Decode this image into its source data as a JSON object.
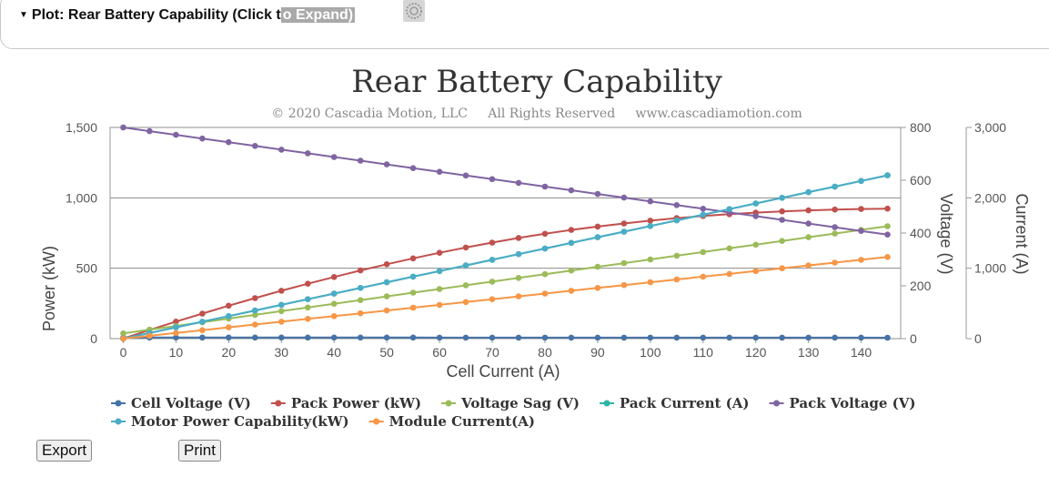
{
  "header": {
    "toggle_prefix": "Plot: Rear Battery Capability (Click t",
    "toggle_highlight": "o Expand)",
    "icon": "gear-icon"
  },
  "buttons": {
    "export_label": "Export",
    "print_label": "Print"
  },
  "colors": {
    "cell_voltage": "#4572a7",
    "pack_power": "#c0504d",
    "voltage_sag": "#9bbb59",
    "pack_current": "#2ab5a5",
    "pack_voltage": "#8064a2",
    "motor_power": "#4bacc6",
    "module_current": "#f79646"
  },
  "chart_data": {
    "type": "line",
    "title": "Rear Battery Capability",
    "subtitle": "© 2020 Cascadia Motion, LLC     All Rights Reserved     www.cascadiamotion.com",
    "xlabel": "Cell Current (A)",
    "x": [
      0,
      5,
      10,
      15,
      20,
      25,
      30,
      35,
      40,
      45,
      50,
      55,
      60,
      65,
      70,
      75,
      80,
      85,
      90,
      95,
      100,
      105,
      110,
      115,
      120,
      125,
      130,
      135,
      140,
      145
    ],
    "xlim": [
      -2.5,
      147.5
    ],
    "xticks": [
      0,
      10,
      20,
      30,
      40,
      50,
      60,
      70,
      80,
      90,
      100,
      110,
      120,
      130,
      140
    ],
    "axes": {
      "power": {
        "label": "Power (kW)",
        "range": [
          0,
          1500
        ],
        "ticks": [
          0,
          500,
          1000,
          1500
        ],
        "tick_labels": [
          "0",
          "500",
          "1,000",
          "1,500"
        ]
      },
      "voltage": {
        "label": "Voltage (V)",
        "range": [
          0,
          800
        ],
        "ticks": [
          0,
          200,
          400,
          600,
          800
        ],
        "tick_labels": [
          "0",
          "200",
          "400",
          "600",
          "800"
        ]
      },
      "current": {
        "label": "Current (A)",
        "range": [
          0,
          3000
        ],
        "ticks": [
          0,
          1000,
          2000,
          3000
        ],
        "tick_labels": [
          "0",
          "1,000",
          "2,000",
          "3,000"
        ]
      }
    },
    "series": [
      {
        "name": "Cell Voltage (V)",
        "axis": "voltage",
        "color": "#4572a7",
        "values": [
          4.2,
          4.18,
          4.16,
          4.14,
          4.12,
          4.1,
          4.08,
          4.06,
          4.04,
          4.02,
          4.0,
          3.98,
          3.96,
          3.94,
          3.92,
          3.9,
          3.88,
          3.86,
          3.84,
          3.82,
          3.8,
          3.78,
          3.76,
          3.74,
          3.72,
          3.7,
          3.68,
          3.66,
          3.64,
          3.62
        ]
      },
      {
        "name": "Pack Power (kW)",
        "axis": "power",
        "color": "#c0504d",
        "values": [
          0,
          62,
          121,
          178,
          234,
          288,
          340,
          390,
          438,
          484,
          528,
          570,
          610,
          647,
          682,
          715,
          745,
          772,
          796,
          818,
          838,
          856,
          871,
          884,
          895,
          904,
          911,
          917,
          921,
          923
        ]
      },
      {
        "name": "Voltage Sag (V)",
        "axis": "voltage",
        "color": "#9bbb59",
        "values": [
          20,
          34,
          48,
          62,
          76,
          90,
          104,
          118,
          132,
          146,
          160,
          174,
          188,
          202,
          216,
          230,
          244,
          258,
          272,
          286,
          300,
          314,
          328,
          342,
          356,
          370,
          384,
          398,
          412,
          426
        ]
      },
      {
        "name": "Pack Current (A)",
        "axis": "current",
        "color": "#2ab5a5",
        "values": [
          0,
          80,
          160,
          240,
          320,
          400,
          480,
          560,
          640,
          720,
          800,
          880,
          960,
          1040,
          1120,
          1200,
          1280,
          1360,
          1440,
          1520,
          1600,
          1680,
          1760,
          1840,
          1920,
          2000,
          2080,
          2160,
          2240,
          2320
        ]
      },
      {
        "name": "Pack Voltage (V)",
        "axis": "voltage",
        "color": "#8064a2",
        "values": [
          800,
          786,
          772,
          758,
          744,
          730,
          716,
          702,
          688,
          674,
          660,
          646,
          632,
          618,
          604,
          590,
          576,
          562,
          548,
          534,
          520,
          506,
          492,
          478,
          464,
          450,
          436,
          422,
          408,
          394
        ]
      },
      {
        "name": "Motor Power Capability(kW)",
        "axis": "power",
        "color": "#4bacc6",
        "values": [
          0,
          40,
          80,
          120,
          160,
          200,
          240,
          280,
          320,
          360,
          400,
          440,
          480,
          520,
          560,
          600,
          640,
          680,
          720,
          760,
          800,
          840,
          880,
          920,
          960,
          1000,
          1040,
          1080,
          1120,
          1160
        ]
      },
      {
        "name": "Module Current(A)",
        "axis": "current",
        "color": "#f79646",
        "values": [
          0,
          40,
          80,
          120,
          160,
          200,
          240,
          280,
          320,
          360,
          400,
          440,
          480,
          520,
          560,
          600,
          640,
          680,
          720,
          760,
          800,
          840,
          880,
          920,
          960,
          1000,
          1040,
          1080,
          1120,
          1160
        ]
      }
    ],
    "legend_rows": [
      [
        "Cell Voltage (V)",
        "Pack Power (kW)",
        "Voltage Sag (V)",
        "Pack Current (A)",
        "Pack Voltage (V)"
      ],
      [
        "Motor Power Capability(kW)",
        "Module Current(A)"
      ]
    ],
    "legend_position": "bottom",
    "grid": true
  }
}
